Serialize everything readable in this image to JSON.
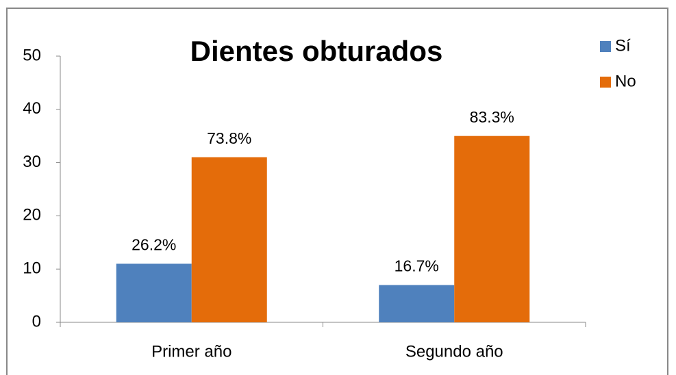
{
  "chart_data": {
    "type": "bar",
    "title": "Dientes obturados",
    "categories": [
      "Primer año",
      "Segundo año"
    ],
    "series": [
      {
        "name": "Sí",
        "color": "#4f81bd",
        "values": [
          11,
          7
        ],
        "value_labels": [
          "26.2%",
          "16.7%"
        ]
      },
      {
        "name": "No",
        "color": "#e46c0a",
        "values": [
          31,
          35
        ],
        "value_labels": [
          "73.8%",
          "83.3%"
        ]
      }
    ],
    "ylim": [
      0,
      50
    ],
    "yticks": [
      0,
      10,
      20,
      30,
      40,
      50
    ],
    "grid": false,
    "legend": "right"
  }
}
